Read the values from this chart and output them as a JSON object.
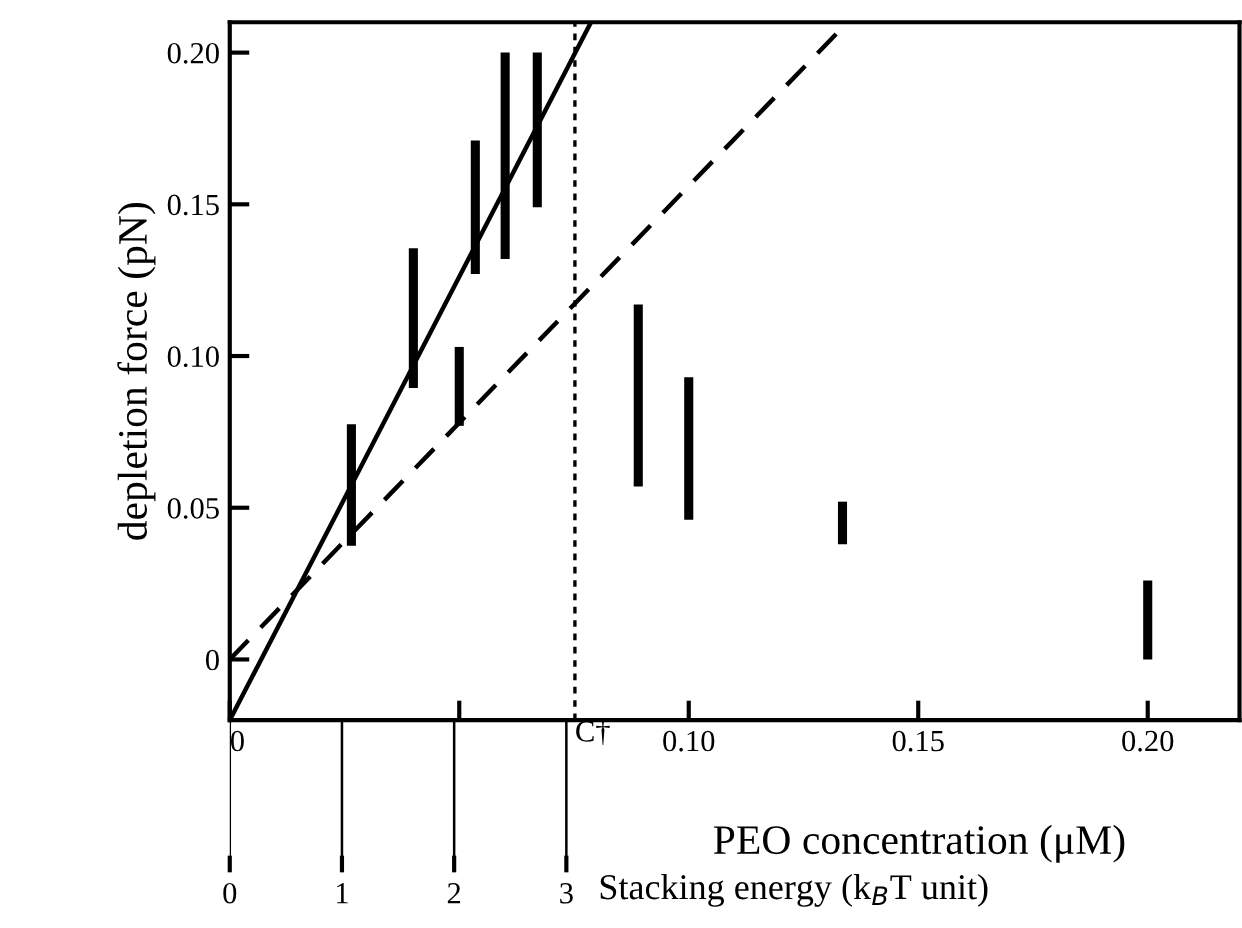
{
  "chart_data": {
    "type": "bar",
    "xlabel": "PEO concentration (μM)",
    "ylabel": "depletion force (pN)",
    "x2label": "Stacking energy (k$_{B}$T unit)",
    "xlim": [
      0,
      0.22
    ],
    "ylim": [
      -0.02,
      0.21
    ],
    "xticks": [
      {
        "value": 0,
        "label": "0"
      },
      {
        "value": 0.05,
        "label": null
      },
      {
        "value": 0.1,
        "label": "0.10"
      },
      {
        "value": 0.15,
        "label": "0.15"
      },
      {
        "value": 0.2,
        "label": "0.20"
      }
    ],
    "yticks": [
      {
        "value": 0,
        "label": "0"
      },
      {
        "value": 0.05,
        "label": "0.05"
      },
      {
        "value": 0.1,
        "label": "0.10"
      },
      {
        "value": 0.15,
        "label": "0.15"
      },
      {
        "value": 0.2,
        "label": "0.20"
      }
    ],
    "x2lim": [
      0,
      9.0
    ],
    "x2ticks": [
      0,
      1,
      2,
      3
    ],
    "grid": false,
    "series": [
      {
        "color": "#000000",
        "x": [
          0.0265,
          0.04,
          0.05,
          0.0535,
          0.06,
          0.067,
          0.089,
          0.1,
          0.1335,
          0.2
        ],
        "base": [
          0.0375,
          0.0895,
          0.077,
          0.127,
          0.132,
          0.149,
          0.057,
          0.046,
          0.038,
          0
        ],
        "values": [
          0.04,
          0.046,
          0.026,
          0.044,
          0.068,
          0.051,
          0.06,
          0.047,
          0.014,
          0.026
        ]
      },
      {
        "type": "line",
        "color": "#000000",
        "line_style": "solid",
        "x": [
          0,
          0.0787
        ],
        "values": [
          -0.02,
          0.21
        ]
      },
      {
        "type": "line",
        "color": "#000000",
        "line_style": "dashed",
        "x": [
          0,
          0.1346
        ],
        "values": [
          0,
          0.21
        ]
      }
    ],
    "ref_lines": [
      {
        "axis": "x",
        "value": 0.0752,
        "label": "C†",
        "line_style": "dotted",
        "color": "#000000"
      }
    ]
  }
}
